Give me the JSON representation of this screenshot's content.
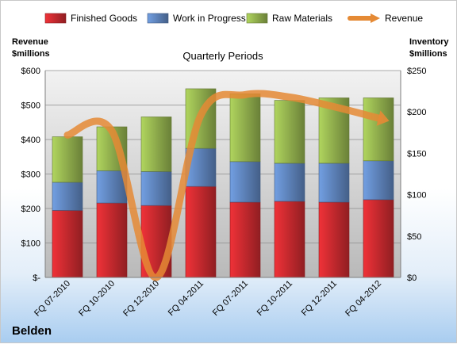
{
  "chart_data": {
    "type": "bar",
    "stacked": true,
    "title": "Quarterly Periods",
    "company": "Belden",
    "categories": [
      "FQ 07-2010",
      "FQ 10-2010",
      "FQ 12-2010",
      "FQ 04-2011",
      "FQ 07-2011",
      "FQ 10-2011",
      "FQ 12-2011",
      "FQ 04-2012"
    ],
    "series": [
      {
        "name": "Finished Goods",
        "axis": "right",
        "color": "#c0282d",
        "values": [
          81,
          90,
          87,
          110,
          91,
          92,
          91,
          94
        ]
      },
      {
        "name": "Work in Progress",
        "axis": "right",
        "color": "#5b7fb5",
        "values": [
          34,
          39,
          41,
          46,
          49,
          46,
          47,
          47
        ]
      },
      {
        "name": "Raw Materials",
        "axis": "right",
        "color": "#8daa4b",
        "values": [
          55,
          53,
          66,
          72,
          82,
          76,
          79,
          76
        ]
      },
      {
        "name": "Revenue",
        "type": "line",
        "axis": "left",
        "color": "#e58a35",
        "values": [
          413,
          425,
          0,
          470,
          530,
          523,
          495,
          462
        ]
      }
    ],
    "y_left": {
      "label": "Revenue\n$millions",
      "ylim": [
        0,
        600
      ],
      "ticks": [
        "$-",
        "$100",
        "$200",
        "$300",
        "$400",
        "$500",
        "$600"
      ]
    },
    "y_right": {
      "label": "Inventory\n$millions",
      "ylim": [
        0,
        250
      ],
      "ticks": [
        "$0",
        "$50",
        "$100",
        "$150",
        "$200",
        "$250"
      ]
    },
    "legend_position": "top",
    "grid": true
  }
}
